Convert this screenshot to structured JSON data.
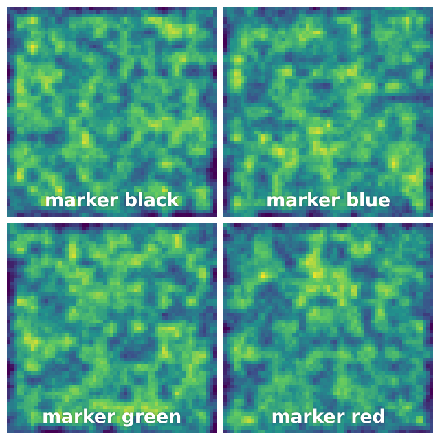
{
  "panels": [
    {
      "label": "marker black"
    },
    {
      "label": "marker blue"
    },
    {
      "label": "marker green"
    },
    {
      "label": "marker red"
    }
  ],
  "colormap": [
    "#440154",
    "#3b528b",
    "#21918c",
    "#5ec962",
    "#fde725"
  ]
}
